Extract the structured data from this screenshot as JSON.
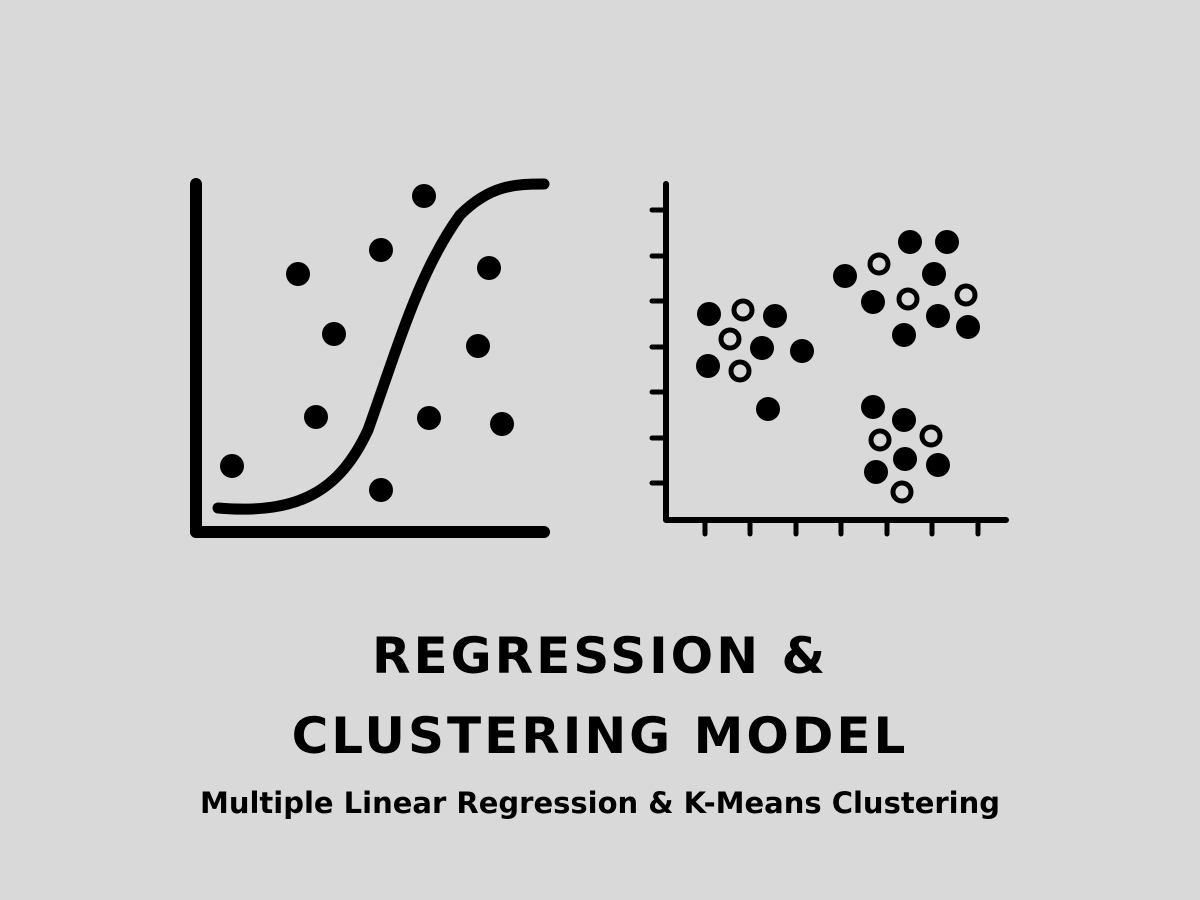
{
  "title": {
    "line1": "REGRESSION &",
    "line2": "CLUSTERING MODEL"
  },
  "subtitle": "Multiple Linear Regression & K-Means Clustering",
  "colors": {
    "background": "#d9d9d9",
    "ink": "#000000"
  },
  "icons": [
    "sigmoid-regression-icon",
    "cluster-scatter-icon"
  ]
}
